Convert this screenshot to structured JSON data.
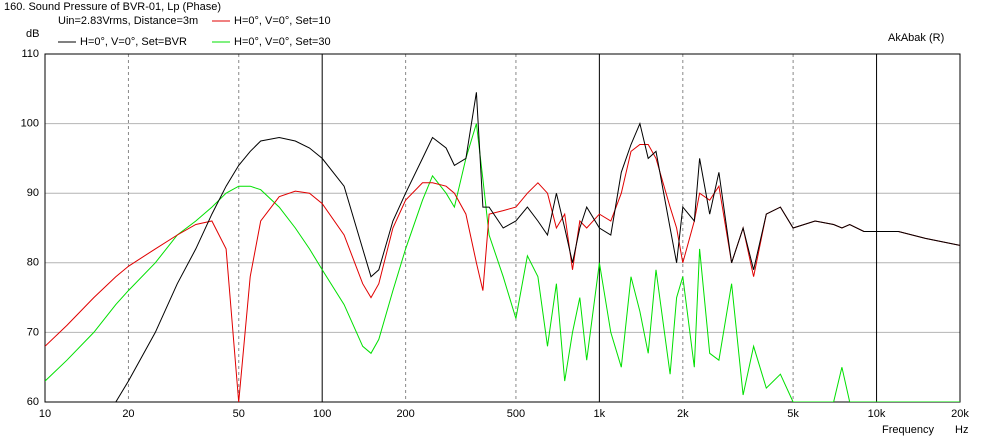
{
  "chart_data": {
    "type": "line",
    "title": "160. Sound Pressure of BVR-01, Lp (Phase)",
    "subtitle": "Uin=2.83Vrms, Distance=3m",
    "annotation": "AkAbak (R)",
    "y_label": "dB",
    "x_label": "Frequency",
    "x_unit": "Hz",
    "x_scale": "log",
    "grid": true,
    "xlim": [
      10,
      20000
    ],
    "ylim": [
      60,
      110
    ],
    "xticks": [
      10,
      20,
      50,
      100,
      200,
      500,
      {
        "value": 1000,
        "label": "1k"
      },
      {
        "value": 2000,
        "label": "2k"
      },
      {
        "value": 5000,
        "label": "5k"
      },
      {
        "value": 10000,
        "label": "10k"
      },
      {
        "value": 20000,
        "label": "20k"
      }
    ],
    "yticks": [
      60,
      70,
      80,
      90,
      100,
      110
    ],
    "x": [
      10,
      12,
      15,
      18,
      20,
      25,
      30,
      35,
      40,
      45,
      50,
      55,
      60,
      70,
      80,
      90,
      100,
      120,
      140,
      150,
      160,
      180,
      200,
      230,
      250,
      280,
      300,
      330,
      360,
      380,
      400,
      450,
      500,
      550,
      600,
      650,
      700,
      750,
      800,
      850,
      900,
      1000,
      1100,
      1200,
      1300,
      1400,
      1500,
      1600,
      1800,
      1900,
      2000,
      2200,
      2300,
      2500,
      2700,
      3000,
      3300,
      3600,
      4000,
      4500,
      5000,
      6000,
      7000,
      7500,
      8000,
      9000,
      10000,
      12000,
      15000,
      20000
    ],
    "series": [
      {
        "name": "H=0°, V=0°, Set=BVR",
        "color": "#000000",
        "values": [
          60,
          60,
          60,
          60,
          63,
          70,
          77,
          82,
          87,
          91,
          94,
          96,
          97.5,
          98,
          97.5,
          96.5,
          95,
          91,
          82,
          78,
          79,
          86,
          90,
          95,
          98,
          96.5,
          94,
          95,
          104.5,
          88,
          88,
          85,
          86,
          88,
          86,
          84,
          90,
          85,
          80,
          85,
          88,
          85,
          84,
          93,
          97,
          100,
          95,
          96,
          85,
          80,
          88,
          86,
          95,
          87,
          93,
          80,
          85,
          79,
          87,
          88,
          85,
          86,
          85.5,
          85,
          85.5,
          84.5,
          84.5,
          84.5,
          83.5,
          82.5
        ]
      },
      {
        "name": "H=0°, V=0°, Set=10",
        "color": "#e00000",
        "values": [
          68,
          71,
          75,
          78,
          79.5,
          82,
          84,
          85.5,
          86,
          82,
          60,
          78,
          86,
          89.5,
          90.3,
          90,
          88.5,
          84,
          77,
          75,
          77,
          85,
          89,
          91.5,
          91.5,
          91,
          90,
          87,
          80,
          76,
          87,
          87.5,
          88,
          90,
          91.5,
          90,
          85,
          87,
          79,
          86,
          85,
          87,
          86,
          90,
          96,
          97,
          97,
          95,
          88,
          85,
          80,
          86,
          90,
          89,
          91,
          80,
          85,
          78,
          87,
          88,
          85,
          86,
          85.5,
          85,
          85.5,
          84.5,
          84.5,
          84.5,
          83.5,
          82.5
        ]
      },
      {
        "name": "H=0°, V=0°, Set=30",
        "color": "#00e000",
        "values": [
          63,
          66,
          70,
          74,
          76,
          80,
          84,
          86,
          88,
          90,
          91,
          91,
          90.5,
          88,
          85,
          82,
          79,
          74,
          68,
          67,
          69,
          76,
          82,
          89,
          92.5,
          90,
          88,
          95,
          100,
          92,
          84,
          78,
          72,
          81,
          78,
          68,
          77,
          63,
          70,
          75,
          66,
          80,
          70,
          65,
          78,
          73,
          67,
          79,
          64,
          75,
          78,
          65,
          82,
          67,
          66,
          77,
          61,
          68,
          62,
          64,
          60,
          60,
          60,
          65,
          60,
          60,
          60,
          60,
          60,
          60
        ]
      }
    ]
  }
}
